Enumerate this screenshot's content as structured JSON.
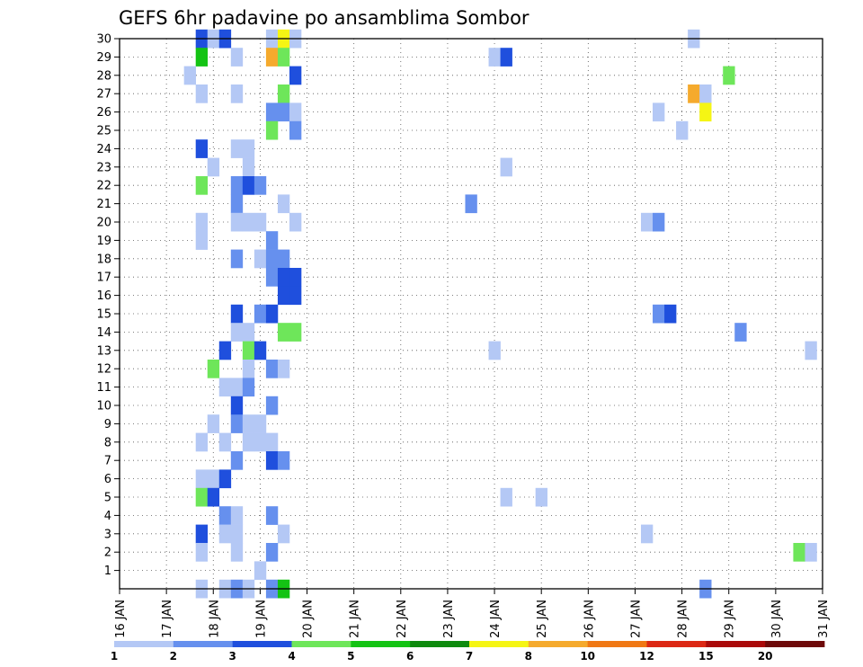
{
  "chart_data": {
    "type": "heatmap",
    "title": "GEFS 6hr padavine po ansamblima Sombor",
    "xlabel": "",
    "ylabel": "",
    "x_tick_labels": [
      "16 JAN",
      "17 JAN",
      "18 JAN",
      "19 JAN",
      "20 JAN",
      "21 JAN",
      "22 JAN",
      "23 JAN",
      "24 JAN",
      "25 JAN",
      "26 JAN",
      "27 JAN",
      "28 JAN",
      "29 JAN",
      "30 JAN",
      "31 JAN"
    ],
    "y_tick_labels": [
      "1",
      "2",
      "3",
      "4",
      "5",
      "6",
      "7",
      "8",
      "9",
      "10",
      "11",
      "12",
      "13",
      "14",
      "15",
      "16",
      "17",
      "18",
      "19",
      "20",
      "21",
      "22",
      "23",
      "24",
      "25",
      "26",
      "27",
      "28",
      "29",
      "30"
    ],
    "x_range_days": [
      16,
      31
    ],
    "y_range_members": [
      0,
      30
    ],
    "grid": true,
    "grid_style": "dotted",
    "colorbar": {
      "placement": "bottom",
      "labels": [
        "1",
        "2",
        "3",
        "4",
        "5",
        "6",
        "7",
        "8",
        "10",
        "12",
        "15",
        "20"
      ],
      "colors": [
        "#b4c8f5",
        "#6690ee",
        "#1f4fdd",
        "#6ee65a",
        "#14c314",
        "#0e8a0e",
        "#f5f514",
        "#f5aa2d",
        "#f07814",
        "#dc2814",
        "#aa0a0a",
        "#6e0a0a"
      ]
    },
    "levels_note_omitted": true,
    "cells": [
      {
        "day": "17.75",
        "m": 30,
        "lvl": 3
      },
      {
        "day": "18.0",
        "m": 30,
        "lvl": 1
      },
      {
        "day": "18.25",
        "m": 30,
        "lvl": 3
      },
      {
        "day": "19.25",
        "m": 30,
        "lvl": 1
      },
      {
        "day": "19.5",
        "m": 30,
        "lvl": 7
      },
      {
        "day": "19.75",
        "m": 30,
        "lvl": 1
      },
      {
        "day": "28.25",
        "m": 30,
        "lvl": 1
      },
      {
        "day": "17.75",
        "m": 29,
        "lvl": 5
      },
      {
        "day": "18.5",
        "m": 29,
        "lvl": 1
      },
      {
        "day": "19.25",
        "m": 29,
        "lvl": 8
      },
      {
        "day": "19.5",
        "m": 29,
        "lvl": 4
      },
      {
        "day": "24.0",
        "m": 29,
        "lvl": 1
      },
      {
        "day": "24.25",
        "m": 29,
        "lvl": 3
      },
      {
        "day": "17.5",
        "m": 28,
        "lvl": 1
      },
      {
        "day": "19.75",
        "m": 28,
        "lvl": 3
      },
      {
        "day": "29.0",
        "m": 28,
        "lvl": 4
      },
      {
        "day": "17.75",
        "m": 27,
        "lvl": 1
      },
      {
        "day": "18.5",
        "m": 27,
        "lvl": 1
      },
      {
        "day": "19.5",
        "m": 27,
        "lvl": 4
      },
      {
        "day": "28.25",
        "m": 27,
        "lvl": 8
      },
      {
        "day": "28.5",
        "m": 27,
        "lvl": 1
      },
      {
        "day": "19.25",
        "m": 26,
        "lvl": 2
      },
      {
        "day": "19.5",
        "m": 26,
        "lvl": 2
      },
      {
        "day": "19.75",
        "m": 26,
        "lvl": 1
      },
      {
        "day": "27.5",
        "m": 26,
        "lvl": 1
      },
      {
        "day": "28.5",
        "m": 26,
        "lvl": 7
      },
      {
        "day": "19.25",
        "m": 25,
        "lvl": 4
      },
      {
        "day": "19.75",
        "m": 25,
        "lvl": 2
      },
      {
        "day": "28.0",
        "m": 25,
        "lvl": 1
      },
      {
        "day": "17.75",
        "m": 24,
        "lvl": 3
      },
      {
        "day": "18.5",
        "m": 24,
        "lvl": 1
      },
      {
        "day": "18.75",
        "m": 24,
        "lvl": 1
      },
      {
        "day": "18.0",
        "m": 23,
        "lvl": 1
      },
      {
        "day": "18.75",
        "m": 23,
        "lvl": 1
      },
      {
        "day": "24.25",
        "m": 23,
        "lvl": 1
      },
      {
        "day": "17.75",
        "m": 22,
        "lvl": 4
      },
      {
        "day": "18.5",
        "m": 22,
        "lvl": 2
      },
      {
        "day": "18.75",
        "m": 22,
        "lvl": 3
      },
      {
        "day": "19.0",
        "m": 22,
        "lvl": 2
      },
      {
        "day": "18.5",
        "m": 21,
        "lvl": 2
      },
      {
        "day": "19.5",
        "m": 21,
        "lvl": 1
      },
      {
        "day": "23.5",
        "m": 21,
        "lvl": 2
      },
      {
        "day": "17.75",
        "m": 20,
        "lvl": 1
      },
      {
        "day": "18.5",
        "m": 20,
        "lvl": 1
      },
      {
        "day": "18.75",
        "m": 20,
        "lvl": 1
      },
      {
        "day": "19.0",
        "m": 20,
        "lvl": 1
      },
      {
        "day": "19.75",
        "m": 20,
        "lvl": 1
      },
      {
        "day": "27.25",
        "m": 20,
        "lvl": 1
      },
      {
        "day": "27.5",
        "m": 20,
        "lvl": 2
      },
      {
        "day": "17.75",
        "m": 19,
        "lvl": 1
      },
      {
        "day": "19.25",
        "m": 19,
        "lvl": 2
      },
      {
        "day": "18.5",
        "m": 18,
        "lvl": 2
      },
      {
        "day": "19.0",
        "m": 18,
        "lvl": 1
      },
      {
        "day": "19.25",
        "m": 18,
        "lvl": 2
      },
      {
        "day": "19.5",
        "m": 18,
        "lvl": 2
      },
      {
        "day": "19.25",
        "m": 17,
        "lvl": 2
      },
      {
        "day": "19.5",
        "m": 17,
        "lvl": 3
      },
      {
        "day": "19.75",
        "m": 17,
        "lvl": 3
      },
      {
        "day": "19.5",
        "m": 16,
        "lvl": 3
      },
      {
        "day": "19.75",
        "m": 16,
        "lvl": 3
      },
      {
        "day": "18.5",
        "m": 15,
        "lvl": 3
      },
      {
        "day": "19.0",
        "m": 15,
        "lvl": 2
      },
      {
        "day": "19.25",
        "m": 15,
        "lvl": 3
      },
      {
        "day": "27.5",
        "m": 15,
        "lvl": 2
      },
      {
        "day": "27.75",
        "m": 15,
        "lvl": 3
      },
      {
        "day": "18.5",
        "m": 14,
        "lvl": 1
      },
      {
        "day": "18.75",
        "m": 14,
        "lvl": 1
      },
      {
        "day": "19.5",
        "m": 14,
        "lvl": 4
      },
      {
        "day": "19.75",
        "m": 14,
        "lvl": 4
      },
      {
        "day": "29.25",
        "m": 14,
        "lvl": 2
      },
      {
        "day": "18.25",
        "m": 13,
        "lvl": 3
      },
      {
        "day": "18.75",
        "m": 13,
        "lvl": 4
      },
      {
        "day": "19.0",
        "m": 13,
        "lvl": 3
      },
      {
        "day": "24.0",
        "m": 13,
        "lvl": 1
      },
      {
        "day": "30.75",
        "m": 13,
        "lvl": 1
      },
      {
        "day": "18.0",
        "m": 12,
        "lvl": 4
      },
      {
        "day": "18.75",
        "m": 12,
        "lvl": 1
      },
      {
        "day": "19.25",
        "m": 12,
        "lvl": 2
      },
      {
        "day": "19.5",
        "m": 12,
        "lvl": 1
      },
      {
        "day": "18.25",
        "m": 11,
        "lvl": 1
      },
      {
        "day": "18.5",
        "m": 11,
        "lvl": 1
      },
      {
        "day": "18.75",
        "m": 11,
        "lvl": 2
      },
      {
        "day": "18.5",
        "m": 10,
        "lvl": 3
      },
      {
        "day": "19.25",
        "m": 10,
        "lvl": 2
      },
      {
        "day": "18.0",
        "m": 9,
        "lvl": 1
      },
      {
        "day": "18.5",
        "m": 9,
        "lvl": 2
      },
      {
        "day": "18.75",
        "m": 9,
        "lvl": 1
      },
      {
        "day": "19.0",
        "m": 9,
        "lvl": 1
      },
      {
        "day": "17.75",
        "m": 8,
        "lvl": 1
      },
      {
        "day": "18.25",
        "m": 8,
        "lvl": 1
      },
      {
        "day": "18.75",
        "m": 8,
        "lvl": 1
      },
      {
        "day": "19.0",
        "m": 8,
        "lvl": 1
      },
      {
        "day": "19.25",
        "m": 8,
        "lvl": 1
      },
      {
        "day": "18.5",
        "m": 7,
        "lvl": 2
      },
      {
        "day": "19.25",
        "m": 7,
        "lvl": 3
      },
      {
        "day": "19.5",
        "m": 7,
        "lvl": 2
      },
      {
        "day": "17.75",
        "m": 6,
        "lvl": 1
      },
      {
        "day": "18.0",
        "m": 6,
        "lvl": 1
      },
      {
        "day": "18.25",
        "m": 6,
        "lvl": 3
      },
      {
        "day": "17.75",
        "m": 5,
        "lvl": 4
      },
      {
        "day": "18.0",
        "m": 5,
        "lvl": 3
      },
      {
        "day": "24.25",
        "m": 5,
        "lvl": 1
      },
      {
        "day": "25.0",
        "m": 5,
        "lvl": 1
      },
      {
        "day": "18.25",
        "m": 4,
        "lvl": 2
      },
      {
        "day": "18.5",
        "m": 4,
        "lvl": 1
      },
      {
        "day": "19.25",
        "m": 4,
        "lvl": 2
      },
      {
        "day": "17.75",
        "m": 3,
        "lvl": 3
      },
      {
        "day": "18.25",
        "m": 3,
        "lvl": 1
      },
      {
        "day": "18.5",
        "m": 3,
        "lvl": 1
      },
      {
        "day": "19.5",
        "m": 3,
        "lvl": 1
      },
      {
        "day": "27.25",
        "m": 3,
        "lvl": 1
      },
      {
        "day": "17.75",
        "m": 2,
        "lvl": 1
      },
      {
        "day": "18.5",
        "m": 2,
        "lvl": 1
      },
      {
        "day": "19.25",
        "m": 2,
        "lvl": 2
      },
      {
        "day": "30.5",
        "m": 2,
        "lvl": 4
      },
      {
        "day": "30.75",
        "m": 2,
        "lvl": 1
      },
      {
        "day": "19.0",
        "m": 1,
        "lvl": 1
      },
      {
        "day": "17.75",
        "m": 0,
        "lvl": 1
      },
      {
        "day": "18.25",
        "m": 0,
        "lvl": 1
      },
      {
        "day": "18.5",
        "m": 0,
        "lvl": 2
      },
      {
        "day": "18.75",
        "m": 0,
        "lvl": 1
      },
      {
        "day": "19.25",
        "m": 0,
        "lvl": 2
      },
      {
        "day": "19.5",
        "m": 0,
        "lvl": 5
      },
      {
        "day": "28.5",
        "m": 0,
        "lvl": 2
      }
    ]
  }
}
